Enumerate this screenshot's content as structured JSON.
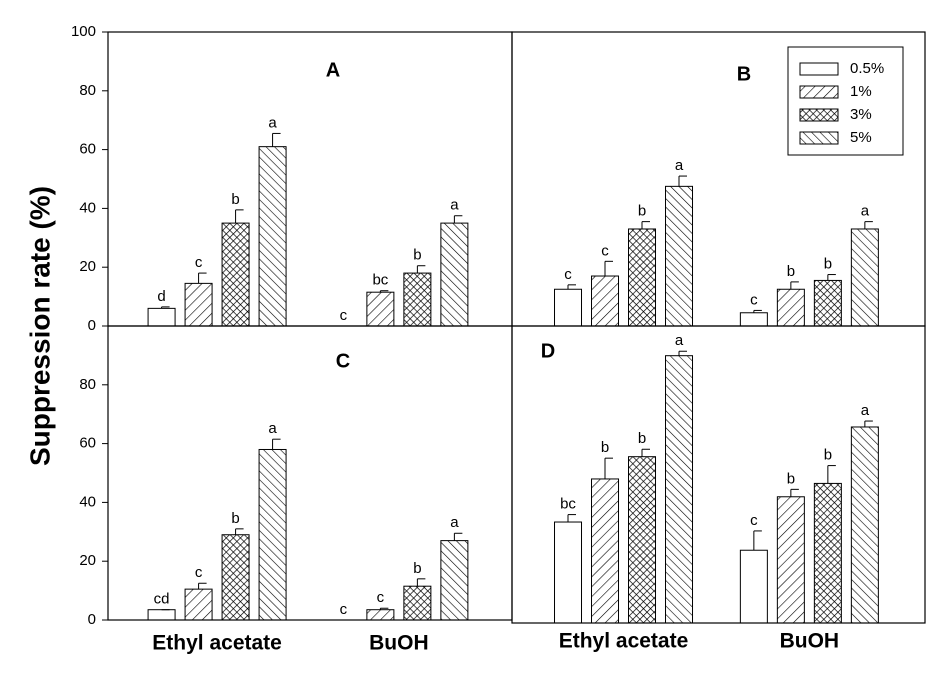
{
  "chart_data": [
    {
      "type": "bar",
      "title": "A",
      "ylabel": "Suppression rate (%)",
      "categories": [
        null,
        null
      ],
      "ylim": [
        0,
        100
      ],
      "yticks": [
        0,
        20,
        40,
        60,
        80,
        100
      ],
      "series": [
        {
          "pattern": "open",
          "values": [
            6,
            0
          ],
          "errors": [
            0.5,
            0
          ],
          "letters": [
            "d",
            "c"
          ]
        },
        {
          "pattern": "forward",
          "values": [
            14.5,
            11.5
          ],
          "errors": [
            3.5,
            0.5
          ],
          "letters": [
            "c",
            "bc"
          ]
        },
        {
          "pattern": "cross",
          "values": [
            35,
            18
          ],
          "errors": [
            4.5,
            2.5
          ],
          "letters": [
            "b",
            "b"
          ]
        },
        {
          "pattern": "back",
          "values": [
            61,
            35
          ],
          "errors": [
            4.5,
            2.5
          ],
          "letters": [
            "a",
            "a"
          ]
        }
      ]
    },
    {
      "type": "bar",
      "title": "B",
      "categories": [
        null,
        null
      ],
      "ylim": [
        0,
        100
      ],
      "legend": "upper right",
      "series": [
        {
          "name": "0.5%",
          "pattern": "open",
          "values": [
            12.5,
            4.5
          ],
          "errors": [
            1.5,
            0.8
          ],
          "letters": [
            "c",
            "c"
          ]
        },
        {
          "name": "1%",
          "pattern": "forward",
          "values": [
            17,
            12.5
          ],
          "errors": [
            5,
            2.5
          ],
          "letters": [
            "c",
            "b"
          ]
        },
        {
          "name": "3%",
          "pattern": "cross",
          "values": [
            33,
            15.5
          ],
          "errors": [
            2.5,
            2
          ],
          "letters": [
            "b",
            "b"
          ]
        },
        {
          "name": "5%",
          "pattern": "back",
          "values": [
            47.5,
            33
          ],
          "errors": [
            3.5,
            2.5
          ],
          "letters": [
            "a",
            "a"
          ]
        }
      ]
    },
    {
      "type": "bar",
      "title": "C",
      "categories": [
        "Ethyl acetate",
        "BuOH"
      ],
      "ylim": [
        0,
        100
      ],
      "yticks": [
        0,
        20,
        40,
        60,
        80
      ],
      "series": [
        {
          "pattern": "open",
          "values": [
            3.5,
            0
          ],
          "errors": [
            0,
            0
          ],
          "letters": [
            "cd",
            "c"
          ]
        },
        {
          "pattern": "forward",
          "values": [
            10.5,
            3.5
          ],
          "errors": [
            2,
            0.5
          ],
          "letters": [
            "c",
            "c"
          ]
        },
        {
          "pattern": "cross",
          "values": [
            29,
            11.5
          ],
          "errors": [
            2,
            2.5
          ],
          "letters": [
            "b",
            "b"
          ]
        },
        {
          "pattern": "back",
          "values": [
            58,
            27
          ],
          "errors": [
            3.5,
            2.5
          ],
          "letters": [
            "a",
            "a"
          ]
        }
      ]
    },
    {
      "type": "bar",
      "title": "D",
      "categories": [
        "Ethyl acetate",
        "BuOH"
      ],
      "ylim": [
        0,
        100
      ],
      "series": [
        {
          "pattern": "open",
          "values": [
            34,
            24.5
          ],
          "errors": [
            2.5,
            6.5
          ],
          "letters": [
            "bc",
            "c"
          ]
        },
        {
          "pattern": "forward",
          "values": [
            48.5,
            42.5
          ],
          "errors": [
            7,
            2.5
          ],
          "letters": [
            "b",
            "b"
          ]
        },
        {
          "pattern": "cross",
          "values": [
            56,
            47
          ],
          "errors": [
            2.5,
            6
          ],
          "letters": [
            "b",
            "b"
          ]
        },
        {
          "pattern": "back",
          "values": [
            90,
            66
          ],
          "errors": [
            1.5,
            2
          ],
          "letters": [
            "a",
            "a"
          ]
        }
      ]
    }
  ]
}
